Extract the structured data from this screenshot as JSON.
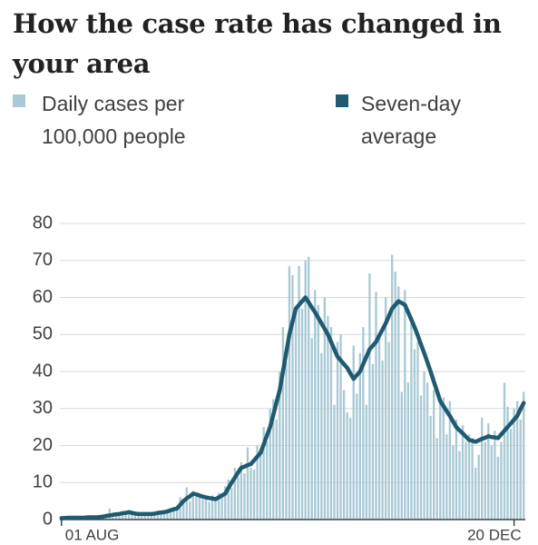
{
  "chart_data": {
    "type": "bar",
    "title": "How the case rate has changed in your area",
    "categories": [
      "01 AUG",
      null,
      null,
      null,
      null,
      null,
      null,
      null,
      null,
      null,
      null,
      null,
      null,
      null,
      null,
      null,
      null,
      null,
      null,
      null,
      null,
      null,
      null,
      null,
      null,
      null,
      null,
      null,
      null,
      null,
      null,
      null,
      null,
      null,
      null,
      null,
      null,
      null,
      null,
      null,
      null,
      null,
      null,
      null,
      null,
      null,
      null,
      null,
      null,
      null,
      null,
      null,
      null,
      null,
      null,
      null,
      null,
      null,
      null,
      null,
      null,
      null,
      null,
      null,
      null,
      null,
      null,
      null,
      null,
      null,
      null,
      null,
      null,
      null,
      null,
      null,
      null,
      null,
      null,
      null,
      null,
      null,
      null,
      null,
      null,
      null,
      null,
      null,
      null,
      null,
      null,
      null,
      null,
      null,
      null,
      null,
      null,
      null,
      null,
      null,
      null,
      null,
      null,
      null,
      null,
      null,
      null,
      null,
      null,
      null,
      null,
      null,
      null,
      null,
      null,
      null,
      null,
      null,
      null,
      null,
      null,
      null,
      null,
      null,
      null,
      null,
      null,
      null,
      null,
      null,
      null,
      null,
      null,
      null,
      null,
      null,
      null,
      null,
      null,
      null,
      null,
      "20 DEC",
      null,
      null,
      null
    ],
    "series": [
      {
        "name": "Daily cases per 100,000 people",
        "type": "bar",
        "color": "#a9c9d5",
        "values": [
          0.6,
          0.3,
          0.5,
          0.7,
          0.4,
          0.6,
          0.5,
          0.3,
          0.7,
          0.5,
          0.6,
          0.8,
          0.5,
          1.2,
          0.8,
          3,
          1.5,
          1.2,
          1.8,
          2.3,
          1.5,
          2.2,
          1.4,
          1.9,
          1.2,
          1.8,
          1.3,
          1.7,
          1.6,
          1.4,
          2.1,
          1.7,
          2.4,
          1.9,
          3.1,
          2.4,
          3.5,
          6,
          4.3,
          8.7,
          5,
          7.8,
          6.2,
          7,
          5.5,
          6.5,
          4.8,
          6.5,
          5,
          7.2,
          5.8,
          9,
          10.8,
          8.5,
          14,
          11.5,
          15.5,
          12.5,
          19.5,
          14,
          13.5,
          20,
          19,
          25,
          21,
          30,
          32.5,
          27,
          40,
          52,
          42.5,
          68.5,
          66,
          56,
          68.5,
          57,
          70,
          71,
          49,
          62,
          58,
          45,
          60,
          55,
          52,
          31,
          48,
          50,
          35,
          29,
          27.5,
          47,
          34,
          45,
          52,
          31,
          66.5,
          42,
          61.5,
          50,
          43,
          60,
          48,
          71.5,
          67,
          63,
          34.5,
          62,
          37,
          55,
          46,
          48,
          33.5,
          40,
          37,
          28,
          35,
          22,
          31.5,
          33,
          23,
          32,
          20,
          27,
          18.5,
          25.5,
          21,
          23,
          22,
          14,
          17.5,
          27.5,
          21,
          26,
          20,
          24,
          17,
          21,
          37,
          30.5,
          24.5,
          30,
          32,
          27,
          34.5
        ]
      },
      {
        "name": "Seven-day average",
        "type": "line",
        "color": "#1f5a70",
        "values": [
          0.4,
          0.4,
          0.5,
          0.5,
          0.5,
          0.5,
          0.5,
          0.5,
          0.6,
          0.6,
          0.6,
          0.6,
          0.7,
          0.8,
          1,
          1.1,
          1.3,
          1.4,
          1.5,
          1.7,
          1.8,
          2,
          1.8,
          1.6,
          1.5,
          1.5,
          1.5,
          1.5,
          1.5,
          1.6,
          1.8,
          1.9,
          2,
          2.2,
          2.5,
          2.8,
          3,
          4,
          5,
          5.7,
          6.3,
          7,
          6.8,
          6.5,
          6.2,
          6,
          5.8,
          5.7,
          5.5,
          6,
          6.5,
          7,
          8.5,
          10,
          11.3,
          12.7,
          14,
          14.3,
          14.7,
          15,
          16,
          17,
          18,
          20.3,
          22.7,
          25,
          28.3,
          31.7,
          35,
          40,
          45,
          50,
          53.5,
          57,
          58,
          59,
          60,
          58.7,
          57.3,
          56,
          54.5,
          53,
          51.5,
          50,
          48,
          46,
          44,
          43,
          42,
          41,
          39.5,
          38,
          39,
          40,
          42,
          44,
          46,
          47,
          48,
          49.7,
          51.3,
          53,
          55,
          57,
          58,
          59,
          58.5,
          58,
          56,
          54,
          52,
          49.7,
          47.3,
          45,
          42.5,
          40,
          37.3,
          34.7,
          32,
          30.7,
          29.3,
          28,
          26.5,
          25,
          24.1,
          23.3,
          22.4,
          21.5,
          21.3,
          21,
          21.4,
          21.8,
          22.1,
          22.5,
          22.3,
          22.2,
          22,
          23,
          24,
          25,
          26,
          27,
          28,
          29.8,
          31.5
        ]
      }
    ],
    "ylim": [
      0,
      80
    ],
    "yticks": [
      0,
      10,
      20,
      30,
      40,
      50,
      60,
      70,
      80
    ],
    "grid": true
  }
}
